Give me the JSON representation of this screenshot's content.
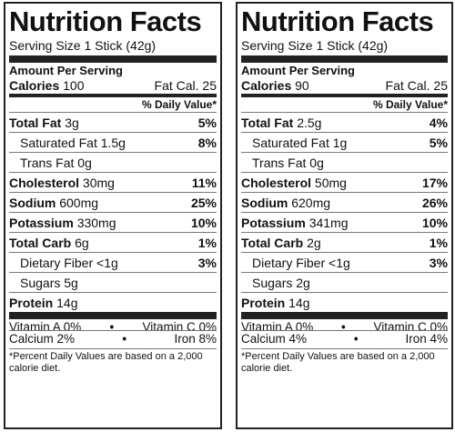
{
  "labels": [
    {
      "title": "Nutrition Facts",
      "serving": "Serving Size 1 Stick (42g)",
      "amount_per_serving": "Amount Per Serving",
      "calories_label": "Calories",
      "calories_value": "100",
      "fat_cal_label": "Fat Cal.",
      "fat_cal_value": "25",
      "daily_value_header": "% Daily Value*",
      "nutrients": [
        {
          "name": "Total Fat",
          "amount": "3g",
          "dv": "5%"
        },
        {
          "name": "Saturated Fat",
          "amount": "1.5g",
          "dv": "8%"
        },
        {
          "name": "Trans Fat",
          "amount": "0g",
          "dv": ""
        },
        {
          "name": "Cholesterol",
          "amount": "30mg",
          "dv": "11%"
        },
        {
          "name": "Sodium",
          "amount": "600mg",
          "dv": "25%"
        },
        {
          "name": "Potassium",
          "amount": "330mg",
          "dv": "10%"
        },
        {
          "name": "Total Carb",
          "amount": "6g",
          "dv": "1%"
        },
        {
          "name": "Dietary Fiber",
          "amount": "<1g",
          "dv": "3%"
        },
        {
          "name": "Sugars",
          "amount": "5g",
          "dv": ""
        },
        {
          "name": "Protein",
          "amount": "14g",
          "dv": ""
        }
      ],
      "vitamins": [
        {
          "left": "Vitamin A 0%",
          "sep": "•",
          "right": "Vitamin C 0%"
        },
        {
          "left": "Calcium 2%",
          "sep": "•",
          "right": "Iron 8%"
        }
      ],
      "footnote": "*Percent Daily Values are based on a 2,000 calorie diet."
    },
    {
      "title": "Nutrition Facts",
      "serving": "Serving Size 1 Stick (42g)",
      "amount_per_serving": "Amount Per Serving",
      "calories_label": "Calories",
      "calories_value": "90",
      "fat_cal_label": "Fat Cal.",
      "fat_cal_value": "25",
      "daily_value_header": "% Daily Value*",
      "nutrients": [
        {
          "name": "Total Fat",
          "amount": "2.5g",
          "dv": "4%"
        },
        {
          "name": "Saturated Fat",
          "amount": "1g",
          "dv": "5%"
        },
        {
          "name": "Trans Fat",
          "amount": "0g",
          "dv": ""
        },
        {
          "name": "Cholesterol",
          "amount": "50mg",
          "dv": "17%"
        },
        {
          "name": "Sodium",
          "amount": "620mg",
          "dv": "26%"
        },
        {
          "name": "Potassium",
          "amount": "341mg",
          "dv": "10%"
        },
        {
          "name": "Total Carb",
          "amount": "2g",
          "dv": "1%"
        },
        {
          "name": "Dietary Fiber",
          "amount": "<1g",
          "dv": "3%"
        },
        {
          "name": "Sugars",
          "amount": "2g",
          "dv": ""
        },
        {
          "name": "Protein",
          "amount": "14g",
          "dv": ""
        }
      ],
      "vitamins": [
        {
          "left": "Vitamin A 0%",
          "sep": "•",
          "right": "Vitamin C 0%"
        },
        {
          "left": "Calcium 4%",
          "sep": "•",
          "right": "Iron 4%"
        }
      ],
      "footnote": "*Percent Daily Values are based on a 2,000 calorie diet."
    }
  ]
}
